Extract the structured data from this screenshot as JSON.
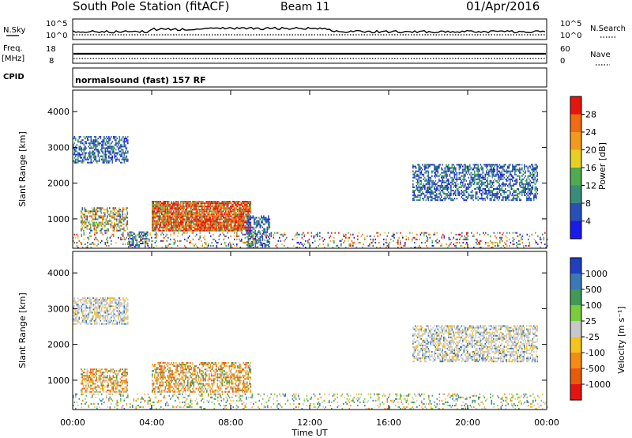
{
  "header": {
    "station": "South Pole Station (fitACF)",
    "beam": "Beam 11",
    "date": "01/Apr/2016"
  },
  "strips": {
    "nsky": {
      "label": "N.Sky",
      "tick_top": "10^5",
      "tick_bottom": "10^0"
    },
    "nsearch": {
      "label": "N.Search",
      "tick_top": "10^5",
      "tick_bottom": "10^0"
    },
    "freq": {
      "label_line1": "Freq.",
      "label_line2": "[MHz]",
      "tick_top": "18",
      "tick_bottom": "8"
    },
    "nave": {
      "label": "Nave",
      "tick_top": "60",
      "tick_bottom": "0"
    },
    "cpid": {
      "label": "CPID",
      "text": "normalsound (fast) 157 RF"
    }
  },
  "chart_data": [
    {
      "type": "heatmap",
      "title": "",
      "quantity": "Power",
      "xlabel": "Time UT",
      "ylabel": "Slant Range [km]",
      "xlim": [
        0,
        24
      ],
      "ylim": [
        180,
        4600
      ],
      "x_ticks": [
        "00:00",
        "04:00",
        "08:00",
        "12:00",
        "16:00",
        "20:00",
        "00:00"
      ],
      "y_ticks": [
        "1000",
        "2000",
        "3000",
        "4000"
      ],
      "colorbar": {
        "label": "Power [dB]",
        "ticks": [
          "4",
          "8",
          "12",
          "16",
          "20",
          "24",
          "28"
        ],
        "colors": [
          "#1a1aee",
          "#2b4fb8",
          "#3a8c7a",
          "#4faa50",
          "#e8cf26",
          "#f39a1c",
          "#f26a12",
          "#e8150c"
        ]
      },
      "echo_regions": [
        {
          "t_start": 0.0,
          "t_end": 2.8,
          "r_start": 2550,
          "r_end": 3300,
          "level": "low"
        },
        {
          "t_start": 0.4,
          "t_end": 2.8,
          "r_start": 650,
          "r_end": 1300,
          "level": "mid"
        },
        {
          "t_start": 2.8,
          "t_end": 3.8,
          "r_start": 200,
          "r_end": 650,
          "level": "low"
        },
        {
          "t_start": 4.0,
          "t_end": 9.0,
          "r_start": 650,
          "r_end": 1500,
          "level": "high"
        },
        {
          "t_start": 8.8,
          "t_end": 10.0,
          "r_start": 200,
          "r_end": 1100,
          "level": "low"
        },
        {
          "t_start": 17.2,
          "t_end": 23.5,
          "r_start": 1500,
          "r_end": 2500,
          "level": "low"
        },
        {
          "t_start": 0.0,
          "t_end": 24.0,
          "r_start": 180,
          "r_end": 600,
          "level": "mixed"
        }
      ]
    },
    {
      "type": "heatmap",
      "title": "",
      "quantity": "Velocity",
      "xlabel": "Time UT",
      "ylabel": "Slant Range [km]",
      "xlim": [
        0,
        24
      ],
      "ylim": [
        180,
        4600
      ],
      "x_ticks": [
        "00:00",
        "04:00",
        "08:00",
        "12:00",
        "16:00",
        "20:00",
        "00:00"
      ],
      "y_ticks": [
        "1000",
        "2000",
        "3000",
        "4000"
      ],
      "colorbar": {
        "label": "Velocity [m s⁻¹]",
        "ticks": [
          "1000",
          "500",
          "100",
          "25",
          "-25",
          "-100",
          "-500",
          "-1000"
        ],
        "colors": [
          "#2040c0",
          "#3a78b8",
          "#3f9a55",
          "#79cc3c",
          "#c8c8c8",
          "#f6c31e",
          "#f58a14",
          "#ea5a0c",
          "#e41412"
        ]
      },
      "echo_regions": [
        {
          "t_start": 0.0,
          "t_end": 2.8,
          "r_start": 2550,
          "r_end": 3300,
          "level": "grey"
        },
        {
          "t_start": 0.4,
          "t_end": 2.8,
          "r_start": 650,
          "r_end": 1300,
          "level": "negative"
        },
        {
          "t_start": 4.0,
          "t_end": 9.0,
          "r_start": 650,
          "r_end": 1500,
          "level": "negative"
        },
        {
          "t_start": 17.2,
          "t_end": 23.5,
          "r_start": 1500,
          "r_end": 2500,
          "level": "grey"
        },
        {
          "t_start": 0.0,
          "t_end": 24.0,
          "r_start": 180,
          "r_end": 600,
          "level": "mixed"
        }
      ]
    }
  ]
}
